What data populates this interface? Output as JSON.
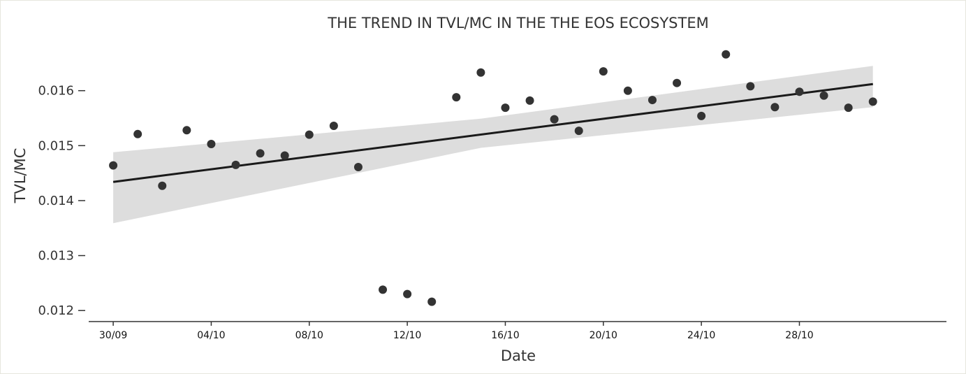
{
  "chart_data": {
    "type": "scatter",
    "title": "THE TREND IN TVL/MC IN THE THE EOS ECOSYSTEM",
    "xlabel": "Date",
    "ylabel": "TVL/MC",
    "x_tick_labels": [
      "30/09",
      "04/10",
      "08/10",
      "12/10",
      "16/10",
      "20/10",
      "24/10",
      "28/10"
    ],
    "y_tick_labels": [
      "0.012",
      "0.013",
      "0.014",
      "0.015",
      "0.016"
    ],
    "y_ticks": [
      0.012,
      0.013,
      0.014,
      0.015,
      0.016
    ],
    "ylim": [
      0.01185,
      0.01695
    ],
    "xlim": [
      "2022-09-29",
      "2022-11-03"
    ],
    "grid": false,
    "points": [
      {
        "x": "2022-09-30",
        "y": 0.01464
      },
      {
        "x": "2022-10-01",
        "y": 0.01521
      },
      {
        "x": "2022-10-02",
        "y": 0.01427
      },
      {
        "x": "2022-10-03",
        "y": 0.01528
      },
      {
        "x": "2022-10-04",
        "y": 0.01503
      },
      {
        "x": "2022-10-05",
        "y": 0.01465
      },
      {
        "x": "2022-10-06",
        "y": 0.01486
      },
      {
        "x": "2022-10-07",
        "y": 0.01482
      },
      {
        "x": "2022-10-08",
        "y": 0.0152
      },
      {
        "x": "2022-10-09",
        "y": 0.01536
      },
      {
        "x": "2022-10-10",
        "y": 0.01461
      },
      {
        "x": "2022-10-11",
        "y": 0.01238
      },
      {
        "x": "2022-10-12",
        "y": 0.0123
      },
      {
        "x": "2022-10-13",
        "y": 0.01216
      },
      {
        "x": "2022-10-14",
        "y": 0.01588
      },
      {
        "x": "2022-10-15",
        "y": 0.01633
      },
      {
        "x": "2022-10-16",
        "y": 0.01569
      },
      {
        "x": "2022-10-17",
        "y": 0.01582
      },
      {
        "x": "2022-10-18",
        "y": 0.01548
      },
      {
        "x": "2022-10-19",
        "y": 0.01527
      },
      {
        "x": "2022-10-20",
        "y": 0.01635
      },
      {
        "x": "2022-10-21",
        "y": 0.016
      },
      {
        "x": "2022-10-22",
        "y": 0.01583
      },
      {
        "x": "2022-10-23",
        "y": 0.01614
      },
      {
        "x": "2022-10-24",
        "y": 0.01554
      },
      {
        "x": "2022-10-25",
        "y": 0.01666
      },
      {
        "x": "2022-10-26",
        "y": 0.01608
      },
      {
        "x": "2022-10-27",
        "y": 0.0157
      },
      {
        "x": "2022-10-28",
        "y": 0.01598
      },
      {
        "x": "2022-10-29",
        "y": 0.01591
      },
      {
        "x": "2022-10-30",
        "y": 0.01569
      },
      {
        "x": "2022-10-31",
        "y": 0.0158
      }
    ],
    "regression": {
      "start": {
        "x": "2022-09-30",
        "y": 0.01434
      },
      "end": {
        "x": "2022-10-31",
        "y": 0.01612
      }
    },
    "confidence_band": [
      {
        "x": "2022-09-30",
        "upper": 0.01488,
        "lower": 0.01359
      },
      {
        "x": "2022-10-15",
        "upper": 0.01549,
        "lower": 0.01496
      },
      {
        "x": "2022-10-31",
        "upper": 0.01645,
        "lower": 0.0157
      }
    ],
    "colors": {
      "points": "#333333",
      "line": "#1a1a1a",
      "band": "#dddddd",
      "axis": "#333333"
    }
  }
}
